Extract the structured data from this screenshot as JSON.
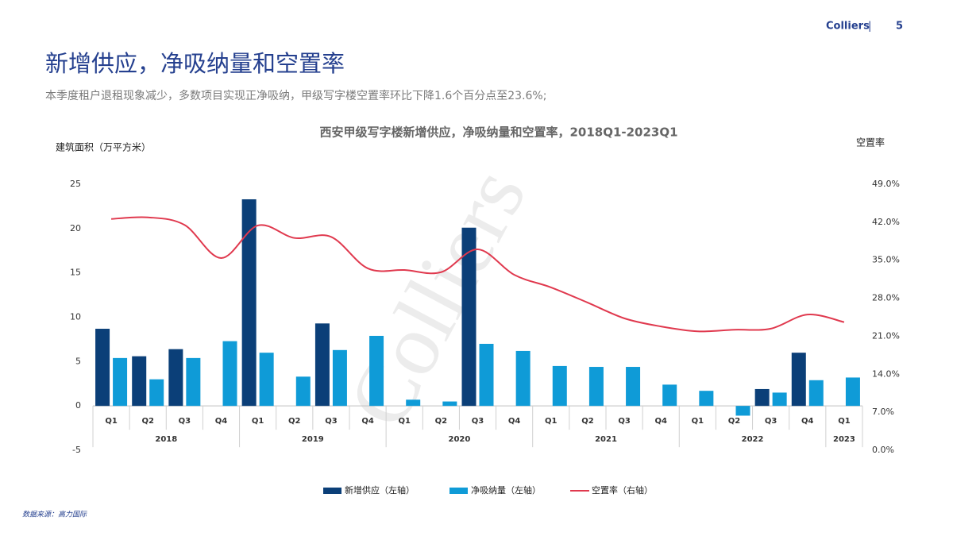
{
  "header": {
    "brand": "Colliers",
    "separator": "|",
    "page": "5"
  },
  "title": "新增供应，净吸纳量和空置率",
  "subtitle": "本季度租户退租现象减少，多数项目实现正净吸纳，甲级写字楼空置率环比下降1.6个百分点至23.6%;",
  "source": "数据来源：高力国际",
  "chart_data": {
    "type": "bar",
    "title": "西安甲级写字楼新增供应，净吸纳量和空置率，2018Q1-2023Q1",
    "watermark": "Colliers",
    "y_label": "建筑面积（万平方米）",
    "y2_label": "空置率",
    "categories": [
      "Q1",
      "Q2",
      "Q3",
      "Q4",
      "Q1",
      "Q2",
      "Q3",
      "Q4",
      "Q1",
      "Q2",
      "Q3",
      "Q4",
      "Q1",
      "Q2",
      "Q3",
      "Q4",
      "Q1",
      "Q2",
      "Q3",
      "Q4",
      "Q1"
    ],
    "years": [
      "2018",
      "2019",
      "2020",
      "2021",
      "2022",
      "2023"
    ],
    "ylim": [
      -5,
      25
    ],
    "yticks": [
      -5,
      0,
      5,
      10,
      15,
      20,
      25
    ],
    "y2lim": [
      0,
      49
    ],
    "y2ticks": [
      {
        "value": 0,
        "label": "0.0%"
      },
      {
        "value": 7,
        "label": "7.0%"
      },
      {
        "value": 14,
        "label": "14.0%"
      },
      {
        "value": 21,
        "label": "21.0%"
      },
      {
        "value": 28,
        "label": "28.0%"
      },
      {
        "value": 35,
        "label": "35.0%"
      },
      {
        "value": 42,
        "label": "42.0%"
      },
      {
        "value": 49,
        "label": "49.0%"
      }
    ],
    "grid": false,
    "legend": "bottom",
    "series": [
      {
        "name": "新增供应（左轴）",
        "type": "bar",
        "color": "#0b3f78",
        "values": [
          8.7,
          5.6,
          6.4,
          null,
          23.3,
          null,
          9.3,
          null,
          null,
          null,
          20.1,
          null,
          null,
          null,
          null,
          null,
          null,
          null,
          1.9,
          6.0,
          null
        ]
      },
      {
        "name": "净吸纳量（左轴）",
        "type": "bar",
        "color": "#0f9bd7",
        "values": [
          5.4,
          3.0,
          5.4,
          7.3,
          6.0,
          3.3,
          6.3,
          7.9,
          0.7,
          0.5,
          7.0,
          6.2,
          4.5,
          4.4,
          4.4,
          2.4,
          1.7,
          -1.1,
          1.5,
          2.9,
          3.2
        ]
      },
      {
        "name": "空置率（右轴）",
        "type": "line",
        "axis": "y2",
        "color": "#e0394e",
        "values": [
          42.6,
          42.9,
          41.5,
          35.4,
          41.4,
          39.1,
          39.3,
          33.5,
          33.2,
          32.8,
          37.0,
          32.3,
          30.0,
          27.2,
          24.3,
          22.8,
          21.9,
          22.2,
          22.4,
          25.0,
          23.6
        ]
      }
    ]
  }
}
